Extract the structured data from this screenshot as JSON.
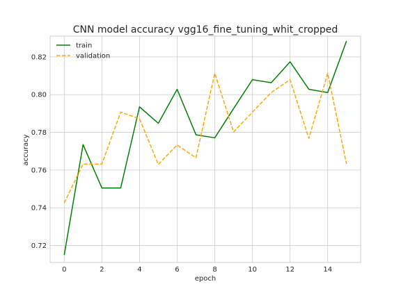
{
  "chart_data": {
    "type": "line",
    "title": "CNN model accuracy vgg16_fine_tuning_whit_cropped",
    "xlabel": "epoch",
    "ylabel": "accuracy",
    "xlim": [
      -0.75,
      15.75
    ],
    "ylim": [
      0.711,
      0.831
    ],
    "x_ticks": [
      0,
      2,
      4,
      6,
      8,
      10,
      12,
      14
    ],
    "y_ticks": [
      0.72,
      0.74,
      0.76,
      0.78,
      0.8,
      0.82
    ],
    "grid": true,
    "legend": "top-left",
    "x": [
      0,
      1,
      2,
      3,
      4,
      5,
      6,
      7,
      8,
      9,
      10,
      11,
      12,
      13,
      14,
      15
    ],
    "series": [
      {
        "name": "train",
        "color": "#008000",
        "style": "solid",
        "values": [
          0.715,
          0.7735,
          0.7505,
          0.7505,
          0.7935,
          0.7848,
          0.8028,
          0.7787,
          0.7771,
          0.7926,
          0.8079,
          0.8063,
          0.8174,
          0.8028,
          0.8011,
          0.8284
        ]
      },
      {
        "name": "validation",
        "color": "#FFA500",
        "style": "dashed",
        "values": [
          0.7426,
          0.7632,
          0.7632,
          0.7907,
          0.7872,
          0.763,
          0.7733,
          0.7665,
          0.8113,
          0.7802,
          0.7907,
          0.8011,
          0.8079,
          0.7768,
          0.8113,
          0.7632
        ]
      }
    ]
  }
}
